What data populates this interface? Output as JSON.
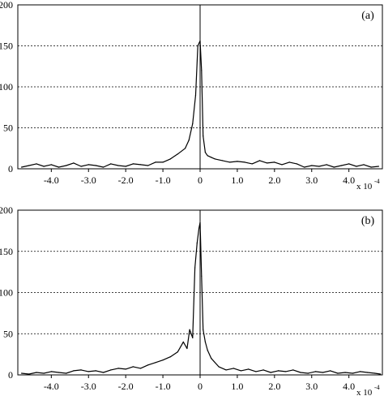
{
  "chart_data": [
    {
      "type": "line",
      "panel_label": "(a)",
      "x_unit_label": "x 10",
      "x_unit_exp": "-4",
      "xlim": [
        -4.9,
        4.9
      ],
      "ylim": [
        0,
        200
      ],
      "x_ticks": [
        -4.0,
        -3.0,
        -2.0,
        -1.0,
        0,
        1.0,
        2.0,
        3.0,
        4.0
      ],
      "x_tick_labels": [
        "-4.0",
        "-3.0",
        "-2.0",
        "-1.0",
        "0",
        "1.0",
        "2.0",
        "3.0",
        "4.0"
      ],
      "y_ticks": [
        0,
        50,
        100,
        150,
        200
      ],
      "y_tick_labels": [
        "0",
        "50",
        "100",
        "150",
        "200"
      ],
      "grid": "horizontal dashed",
      "series": [
        {
          "x": [
            -4.8,
            -4.6,
            -4.4,
            -4.2,
            -4.0,
            -3.8,
            -3.6,
            -3.4,
            -3.2,
            -3.0,
            -2.8,
            -2.6,
            -2.4,
            -2.2,
            -2.0,
            -1.8,
            -1.6,
            -1.4,
            -1.2,
            -1.0,
            -0.8,
            -0.6,
            -0.4,
            -0.3,
            -0.2,
            -0.12,
            -0.06,
            0.0,
            0.04,
            0.08,
            0.14,
            0.2,
            0.3,
            0.4,
            0.6,
            0.8,
            1.0,
            1.2,
            1.4,
            1.6,
            1.8,
            2.0,
            2.2,
            2.4,
            2.6,
            2.8,
            3.0,
            3.2,
            3.4,
            3.6,
            3.8,
            4.0,
            4.2,
            4.4,
            4.6,
            4.8
          ],
          "values": [
            2,
            4,
            6,
            3,
            5,
            2,
            4,
            7,
            3,
            5,
            4,
            2,
            6,
            4,
            3,
            6,
            5,
            4,
            8,
            8,
            12,
            18,
            25,
            35,
            55,
            90,
            150,
            156,
            120,
            40,
            20,
            16,
            14,
            12,
            10,
            8,
            9,
            8,
            6,
            10,
            7,
            8,
            5,
            8,
            6,
            2,
            4,
            3,
            5,
            2,
            4,
            6,
            3,
            5,
            2,
            3
          ]
        }
      ]
    },
    {
      "type": "line",
      "panel_label": "(b)",
      "x_unit_label": "x 10",
      "x_unit_exp": "-4",
      "xlim": [
        -4.9,
        4.9
      ],
      "ylim": [
        0,
        200
      ],
      "x_ticks": [
        -4.0,
        -3.0,
        -2.0,
        -1.0,
        0,
        1.0,
        2.0,
        3.0,
        4.0
      ],
      "x_tick_labels": [
        "-4.0",
        "-3.0",
        "-2.0",
        "-1.0",
        "0",
        "1.0",
        "2.0",
        "3.0",
        "4.0"
      ],
      "y_ticks": [
        0,
        50,
        100,
        150,
        200
      ],
      "y_tick_labels": [
        "0",
        "50",
        "100",
        "150",
        "200"
      ],
      "grid": "horizontal dashed",
      "series": [
        {
          "x": [
            -4.8,
            -4.6,
            -4.4,
            -4.2,
            -4.0,
            -3.8,
            -3.6,
            -3.4,
            -3.2,
            -3.0,
            -2.8,
            -2.6,
            -2.4,
            -2.2,
            -2.0,
            -1.8,
            -1.6,
            -1.4,
            -1.2,
            -1.0,
            -0.8,
            -0.6,
            -0.45,
            -0.35,
            -0.28,
            -0.2,
            -0.14,
            -0.08,
            -0.03,
            0.0,
            0.04,
            0.08,
            0.14,
            0.2,
            0.3,
            0.5,
            0.7,
            0.9,
            1.1,
            1.3,
            1.5,
            1.7,
            1.9,
            2.1,
            2.3,
            2.5,
            2.7,
            2.9,
            3.1,
            3.3,
            3.5,
            3.7,
            3.9,
            4.1,
            4.3,
            4.5,
            4.7,
            4.85
          ],
          "values": [
            2,
            1,
            3,
            2,
            4,
            3,
            2,
            5,
            6,
            4,
            5,
            3,
            6,
            8,
            7,
            10,
            8,
            12,
            15,
            18,
            22,
            28,
            40,
            32,
            55,
            45,
            130,
            160,
            178,
            185,
            120,
            55,
            40,
            30,
            20,
            10,
            6,
            8,
            5,
            7,
            4,
            6,
            3,
            5,
            4,
            6,
            3,
            2,
            4,
            3,
            5,
            2,
            3,
            2,
            4,
            3,
            2,
            1
          ]
        }
      ]
    }
  ]
}
